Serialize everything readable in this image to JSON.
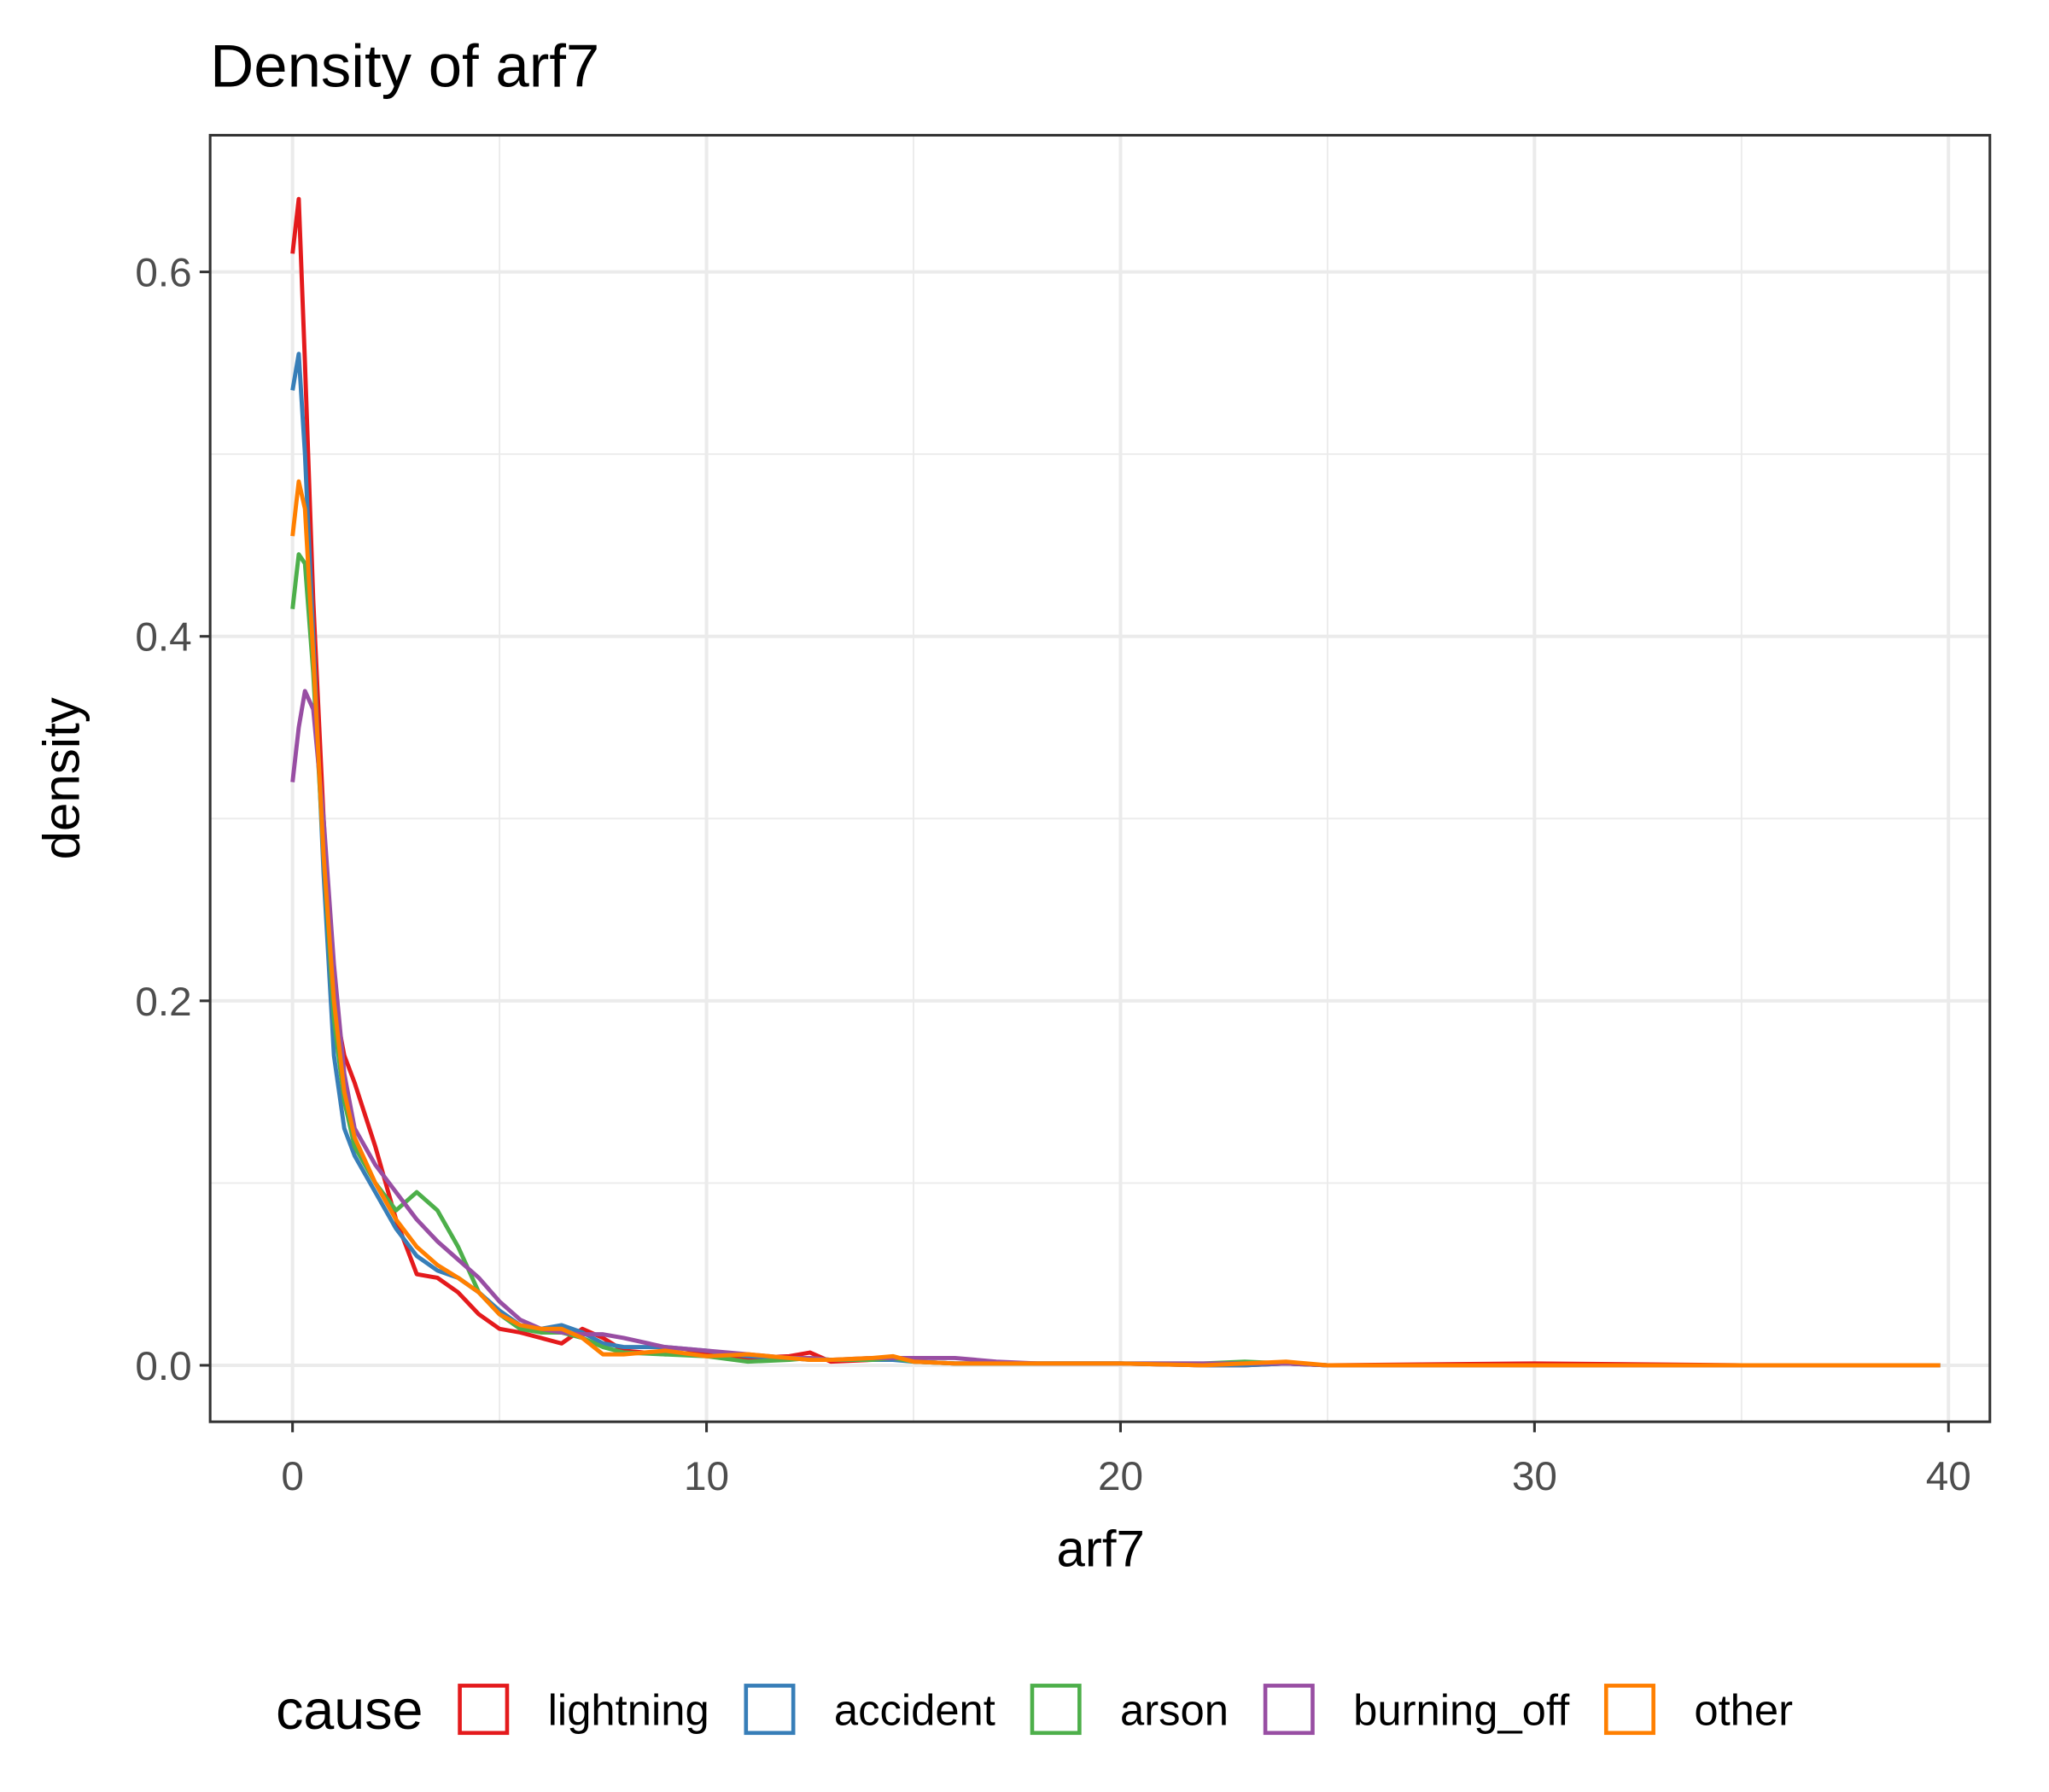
{
  "chart_data": {
    "type": "line",
    "title": "Density of arf7",
    "x_label": "arf7",
    "y_label": "density",
    "legend_title": "cause",
    "legend_position": "bottom",
    "grid": true,
    "xlim": [
      -1.99,
      41.0
    ],
    "ylim": [
      -0.031,
      0.675
    ],
    "xticks": [
      0,
      10,
      20,
      30,
      40
    ],
    "yticks": [
      {
        "value": 0,
        "label": "0.0"
      },
      {
        "value": 0.2,
        "label": "0.2"
      },
      {
        "value": 0.4,
        "label": "0.4"
      },
      {
        "value": 0.6,
        "label": "0.6"
      }
    ],
    "x_minor_ticks": [
      5,
      15,
      25,
      35
    ],
    "y_minor_ticks": [
      0.1,
      0.3,
      0.5
    ],
    "x": [
      0,
      0.15,
      0.3,
      0.5,
      0.75,
      1,
      1.25,
      1.5,
      2,
      2.5,
      3,
      3.5,
      4,
      4.5,
      5,
      5.5,
      6,
      6.5,
      7,
      7.5,
      8,
      9,
      10,
      11,
      12,
      12.5,
      13,
      14,
      14.5,
      15,
      16,
      17,
      18,
      20,
      22,
      23,
      24,
      25,
      30,
      35,
      39.8
    ],
    "series": [
      {
        "name": "lightning",
        "color": "#e41a1c",
        "values": [
          0.61,
          0.64,
          0.55,
          0.42,
          0.3,
          0.2,
          0.17,
          0.155,
          0.12,
          0.08,
          0.05,
          0.048,
          0.04,
          0.028,
          0.02,
          0.018,
          0.015,
          0.012,
          0.02,
          0.015,
          0.008,
          0.006,
          0.007,
          0.004,
          0.005,
          0.007,
          0.002,
          0.003,
          0.004,
          0.002,
          0.001,
          0.001,
          0.001,
          0.001,
          0,
          0,
          0.001,
          0,
          0.001,
          0,
          0
        ]
      },
      {
        "name": "accident",
        "color": "#377eb8",
        "values": [
          0.535,
          0.555,
          0.5,
          0.4,
          0.27,
          0.17,
          0.13,
          0.115,
          0.095,
          0.075,
          0.06,
          0.052,
          0.048,
          0.04,
          0.03,
          0.022,
          0.02,
          0.022,
          0.018,
          0.012,
          0.01,
          0.01,
          0.008,
          0.005,
          0.004,
          0.003,
          0.003,
          0.003,
          0.003,
          0.002,
          0.001,
          0.001,
          0.001,
          0.001,
          0,
          0,
          0.001,
          0,
          0,
          0,
          0
        ]
      },
      {
        "name": "arson",
        "color": "#4daf4a",
        "values": [
          0.415,
          0.445,
          0.44,
          0.38,
          0.28,
          0.19,
          0.145,
          0.12,
          0.1,
          0.085,
          0.095,
          0.085,
          0.065,
          0.04,
          0.028,
          0.02,
          0.018,
          0.018,
          0.015,
          0.01,
          0.007,
          0.006,
          0.005,
          0.002,
          0.003,
          0.004,
          0.003,
          0.003,
          0.004,
          0.002,
          0.001,
          0.001,
          0.001,
          0.001,
          0.001,
          0.002,
          0.001,
          0,
          0,
          0,
          0
        ]
      },
      {
        "name": "burning_off",
        "color": "#984ea3",
        "values": [
          0.32,
          0.35,
          0.37,
          0.36,
          0.3,
          0.22,
          0.16,
          0.13,
          0.11,
          0.095,
          0.08,
          0.068,
          0.058,
          0.048,
          0.035,
          0.025,
          0.02,
          0.018,
          0.017,
          0.017,
          0.015,
          0.01,
          0.008,
          0.006,
          0.004,
          0.004,
          0.003,
          0.004,
          0.004,
          0.004,
          0.004,
          0.002,
          0.001,
          0.001,
          0.001,
          0.001,
          0.001,
          0,
          0,
          0,
          0
        ]
      },
      {
        "name": "other",
        "color": "#ff7f00",
        "values": [
          0.455,
          0.485,
          0.47,
          0.39,
          0.28,
          0.2,
          0.15,
          0.125,
          0.1,
          0.08,
          0.065,
          0.055,
          0.048,
          0.04,
          0.028,
          0.022,
          0.02,
          0.02,
          0.015,
          0.006,
          0.006,
          0.008,
          0.005,
          0.006,
          0.004,
          0.003,
          0.003,
          0.004,
          0.005,
          0.002,
          0.001,
          0.001,
          0.001,
          0.001,
          0,
          0.001,
          0.002,
          0,
          0,
          0,
          0
        ]
      }
    ]
  }
}
